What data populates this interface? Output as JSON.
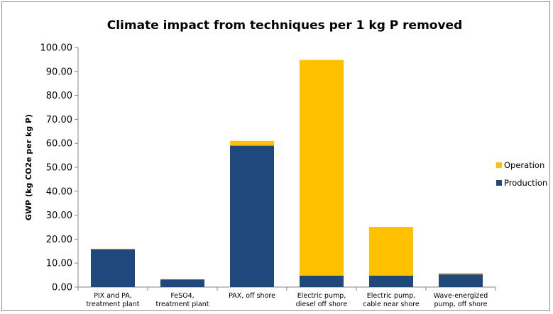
{
  "chart_data": {
    "type": "bar",
    "stacked": true,
    "title": "Climate impact from techniques per 1 kg P removed",
    "ylabel": "GWP (kg CO2e per kg P)",
    "xlabel": "",
    "ylim": [
      0,
      100
    ],
    "yticks": [
      "0.00",
      "10.00",
      "20.00",
      "30.00",
      "40.00",
      "50.00",
      "60.00",
      "70.00",
      "80.00",
      "90.00",
      "100.00"
    ],
    "categories": [
      [
        "PIX and PA,",
        "treatment plant"
      ],
      [
        "FeSO4,",
        "treatment plant"
      ],
      [
        "PAX, off shore"
      ],
      [
        "Electric pump,",
        "diesel off shore"
      ],
      [
        "Electric pump,",
        "cable near shore"
      ],
      [
        "Wave-energized",
        "pump, off shore"
      ]
    ],
    "series": [
      {
        "name": "Production",
        "color": "#1f497d",
        "values": [
          15.8,
          3.2,
          59.0,
          4.8,
          4.8,
          5.3
        ]
      },
      {
        "name": "Operation",
        "color": "#ffc000",
        "values": [
          0.2,
          0.1,
          2.0,
          90.0,
          20.3,
          0.6
        ]
      }
    ],
    "legend": {
      "position": "right",
      "order": [
        "Operation",
        "Production"
      ]
    },
    "grid": true
  }
}
